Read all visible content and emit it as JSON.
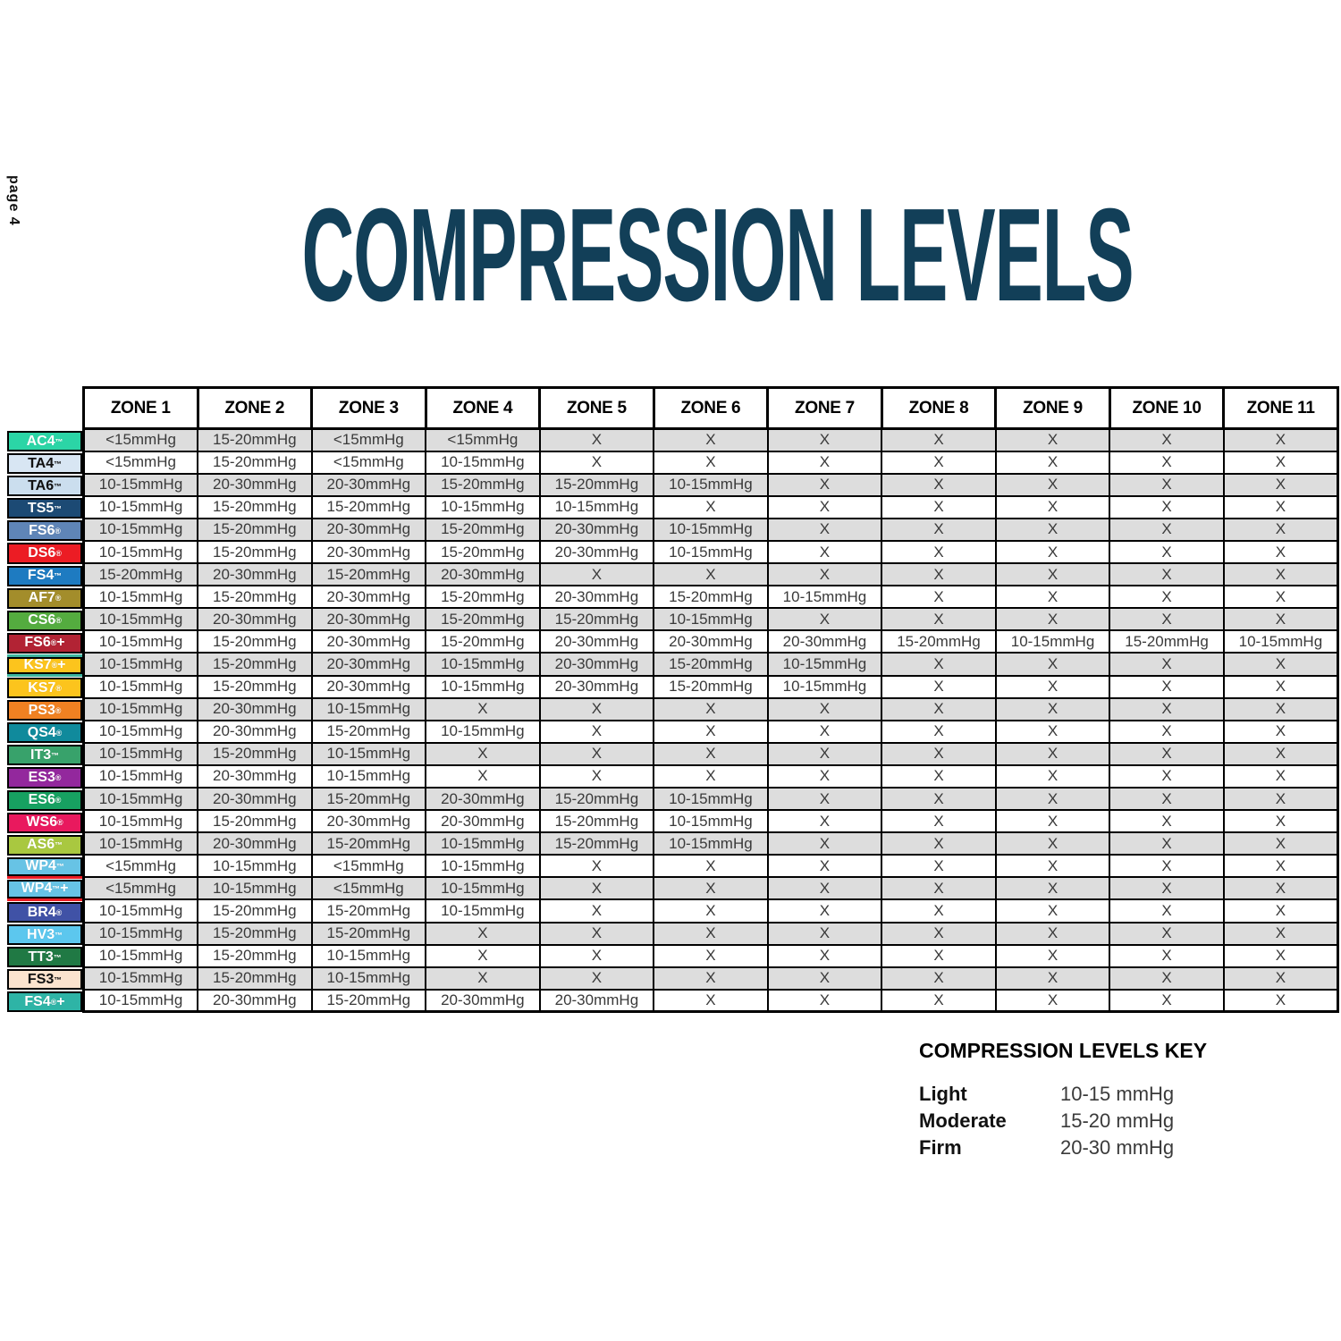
{
  "page": {
    "page_number_label": "page 4",
    "title": "COMPRESSION LEVELS"
  },
  "colors": {
    "title_text": "#123F58",
    "stripe_row_bg": "#DDDDDD",
    "plain_row_bg": "#FFFFFF",
    "grid_border": "#000000",
    "cell_text": "#3A3A3A"
  },
  "table": {
    "columns": [
      "ZONE 1",
      "ZONE 2",
      "ZONE 3",
      "ZONE 4",
      "ZONE 5",
      "ZONE 6",
      "ZONE 7",
      "ZONE 8",
      "ZONE 9",
      "ZONE 10",
      "ZONE 11"
    ],
    "rows": [
      {
        "product": "AC4™",
        "label_bg": "#2BD5A6",
        "label_fg": "#FFFFFF",
        "values": [
          "<15mmHg",
          "15-20mmHg",
          "<15mmHg",
          "<15mmHg",
          "X",
          "X",
          "X",
          "X",
          "X",
          "X",
          "X"
        ]
      },
      {
        "product": "TA4™",
        "label_bg": "#D8E6F3",
        "label_fg": "#111111",
        "values": [
          "<15mmHg",
          "15-20mmHg",
          "<15mmHg",
          "10-15mmHg",
          "X",
          "X",
          "X",
          "X",
          "X",
          "X",
          "X"
        ]
      },
      {
        "product": "TA6™",
        "label_bg": "#CBDEEE",
        "label_fg": "#111111",
        "values": [
          "10-15mmHg",
          "20-30mmHg",
          "20-30mmHg",
          "15-20mmHg",
          "15-20mmHg",
          "10-15mmHg",
          "X",
          "X",
          "X",
          "X",
          "X"
        ]
      },
      {
        "product": "TS5™",
        "label_bg": "#1C4A74",
        "label_fg": "#FFFFFF",
        "values": [
          "10-15mmHg",
          "15-20mmHg",
          "15-20mmHg",
          "10-15mmHg",
          "10-15mmHg",
          "X",
          "X",
          "X",
          "X",
          "X",
          "X"
        ]
      },
      {
        "product": "FS6®",
        "label_bg": "#5F85B7",
        "label_fg": "#FFFFFF",
        "values": [
          "10-15mmHg",
          "15-20mmHg",
          "20-30mmHg",
          "15-20mmHg",
          "20-30mmHg",
          "10-15mmHg",
          "X",
          "X",
          "X",
          "X",
          "X"
        ]
      },
      {
        "product": "DS6®",
        "label_bg": "#EC1C24",
        "label_fg": "#FFFFFF",
        "values": [
          "10-15mmHg",
          "15-20mmHg",
          "20-30mmHg",
          "15-20mmHg",
          "20-30mmHg",
          "10-15mmHg",
          "X",
          "X",
          "X",
          "X",
          "X"
        ]
      },
      {
        "product": "FS4™",
        "label_bg": "#1E7BC1",
        "label_fg": "#FFFFFF",
        "values": [
          "15-20mmHg",
          "20-30mmHg",
          "15-20mmHg",
          "20-30mmHg",
          "X",
          "X",
          "X",
          "X",
          "X",
          "X",
          "X"
        ]
      },
      {
        "product": "AF7®",
        "label_bg": "#A38D2B",
        "label_fg": "#FFFFFF",
        "values": [
          "10-15mmHg",
          "15-20mmHg",
          "20-30mmHg",
          "15-20mmHg",
          "20-30mmHg",
          "15-20mmHg",
          "10-15mmHg",
          "X",
          "X",
          "X",
          "X"
        ]
      },
      {
        "product": "CS6®",
        "label_bg": "#54AC3F",
        "label_fg": "#FFFFFF",
        "values": [
          "10-15mmHg",
          "20-30mmHg",
          "20-30mmHg",
          "15-20mmHg",
          "15-20mmHg",
          "10-15mmHg",
          "X",
          "X",
          "X",
          "X",
          "X"
        ]
      },
      {
        "product": "FS6®+",
        "label_bg": "#B22334",
        "label_fg": "#FFFFFF",
        "values": [
          "10-15mmHg",
          "15-20mmHg",
          "20-30mmHg",
          "15-20mmHg",
          "20-30mmHg",
          "20-30mmHg",
          "20-30mmHg",
          "15-20mmHg",
          "10-15mmHg",
          "15-20mmHg",
          "10-15mmHg"
        ]
      },
      {
        "product": "KS7®+",
        "label_bg": "#FCC41D",
        "label_fg": "#FFFFFF",
        "accent_top": "#3CB5A0",
        "accent_bottom": "#3CB5A0",
        "values": [
          "10-15mmHg",
          "15-20mmHg",
          "20-30mmHg",
          "10-15mmHg",
          "20-30mmHg",
          "15-20mmHg",
          "10-15mmHg",
          "X",
          "X",
          "X",
          "X"
        ]
      },
      {
        "product": "KS7®",
        "label_bg": "#FCC41D",
        "label_fg": "#FFFFFF",
        "values": [
          "10-15mmHg",
          "15-20mmHg",
          "20-30mmHg",
          "10-15mmHg",
          "20-30mmHg",
          "15-20mmHg",
          "10-15mmHg",
          "X",
          "X",
          "X",
          "X"
        ]
      },
      {
        "product": "PS3®",
        "label_bg": "#F08122",
        "label_fg": "#FFFFFF",
        "values": [
          "10-15mmHg",
          "20-30mmHg",
          "10-15mmHg",
          "X",
          "X",
          "X",
          "X",
          "X",
          "X",
          "X",
          "X"
        ]
      },
      {
        "product": "QS4®",
        "label_bg": "#108A9C",
        "label_fg": "#FFFFFF",
        "values": [
          "10-15mmHg",
          "20-30mmHg",
          "15-20mmHg",
          "10-15mmHg",
          "X",
          "X",
          "X",
          "X",
          "X",
          "X",
          "X"
        ]
      },
      {
        "product": "IT3™",
        "label_bg": "#38A26B",
        "label_fg": "#FFFFFF",
        "values": [
          "10-15mmHg",
          "15-20mmHg",
          "10-15mmHg",
          "X",
          "X",
          "X",
          "X",
          "X",
          "X",
          "X",
          "X"
        ]
      },
      {
        "product": "ES3®",
        "label_bg": "#93289D",
        "label_fg": "#FFFFFF",
        "values": [
          "10-15mmHg",
          "20-30mmHg",
          "10-15mmHg",
          "X",
          "X",
          "X",
          "X",
          "X",
          "X",
          "X",
          "X"
        ]
      },
      {
        "product": "ES6®",
        "label_bg": "#17A161",
        "label_fg": "#FFFFFF",
        "values": [
          "10-15mmHg",
          "20-30mmHg",
          "15-20mmHg",
          "20-30mmHg",
          "15-20mmHg",
          "10-15mmHg",
          "X",
          "X",
          "X",
          "X",
          "X"
        ]
      },
      {
        "product": "WS6®",
        "label_bg": "#E9195E",
        "label_fg": "#FFFFFF",
        "values": [
          "10-15mmHg",
          "15-20mmHg",
          "20-30mmHg",
          "20-30mmHg",
          "15-20mmHg",
          "10-15mmHg",
          "X",
          "X",
          "X",
          "X",
          "X"
        ]
      },
      {
        "product": "AS6™",
        "label_bg": "#A9C840",
        "label_fg": "#FFFFFF",
        "values": [
          "10-15mmHg",
          "20-30mmHg",
          "15-20mmHg",
          "10-15mmHg",
          "15-20mmHg",
          "10-15mmHg",
          "X",
          "X",
          "X",
          "X",
          "X"
        ]
      },
      {
        "product": "WP4™",
        "label_bg": "#67C3E5",
        "label_fg": "#FFFFFF",
        "accent_bottom": "#EC1C24",
        "values": [
          "<15mmHg",
          "10-15mmHg",
          "<15mmHg",
          "10-15mmHg",
          "X",
          "X",
          "X",
          "X",
          "X",
          "X",
          "X"
        ]
      },
      {
        "product": "WP4™+",
        "label_bg": "#67C3E5",
        "label_fg": "#FFFFFF",
        "accent_bottom": "#EC1C24",
        "values": [
          "<15mmHg",
          "10-15mmHg",
          "<15mmHg",
          "10-15mmHg",
          "X",
          "X",
          "X",
          "X",
          "X",
          "X",
          "X"
        ]
      },
      {
        "product": "BR4®",
        "label_bg": "#4052A6",
        "label_fg": "#FFFFFF",
        "values": [
          "10-15mmHg",
          "15-20mmHg",
          "15-20mmHg",
          "10-15mmHg",
          "X",
          "X",
          "X",
          "X",
          "X",
          "X",
          "X"
        ]
      },
      {
        "product": "HV3™",
        "label_bg": "#5CC7EE",
        "label_fg": "#FFFFFF",
        "values": [
          "10-15mmHg",
          "15-20mmHg",
          "15-20mmHg",
          "X",
          "X",
          "X",
          "X",
          "X",
          "X",
          "X",
          "X"
        ]
      },
      {
        "product": "TT3™",
        "label_bg": "#207944",
        "label_fg": "#FFFFFF",
        "values": [
          "10-15mmHg",
          "15-20mmHg",
          "10-15mmHg",
          "X",
          "X",
          "X",
          "X",
          "X",
          "X",
          "X",
          "X"
        ]
      },
      {
        "product": "FS3™",
        "label_bg": "#FBE3CE",
        "label_fg": "#111111",
        "values": [
          "10-15mmHg",
          "15-20mmHg",
          "10-15mmHg",
          "X",
          "X",
          "X",
          "X",
          "X",
          "X",
          "X",
          "X"
        ]
      },
      {
        "product": "FS4®+",
        "label_bg": "#2EB4A6",
        "label_fg": "#FFFFFF",
        "values": [
          "10-15mmHg",
          "20-30mmHg",
          "15-20mmHg",
          "20-30mmHg",
          "20-30mmHg",
          "X",
          "X",
          "X",
          "X",
          "X",
          "X"
        ]
      }
    ]
  },
  "key": {
    "title": "COMPRESSION LEVELS KEY",
    "entries": [
      {
        "level": "Light",
        "range": "10-15 mmHg"
      },
      {
        "level": "Moderate",
        "range": "15-20 mmHg"
      },
      {
        "level": "Firm",
        "range": "20-30 mmHg"
      }
    ]
  }
}
